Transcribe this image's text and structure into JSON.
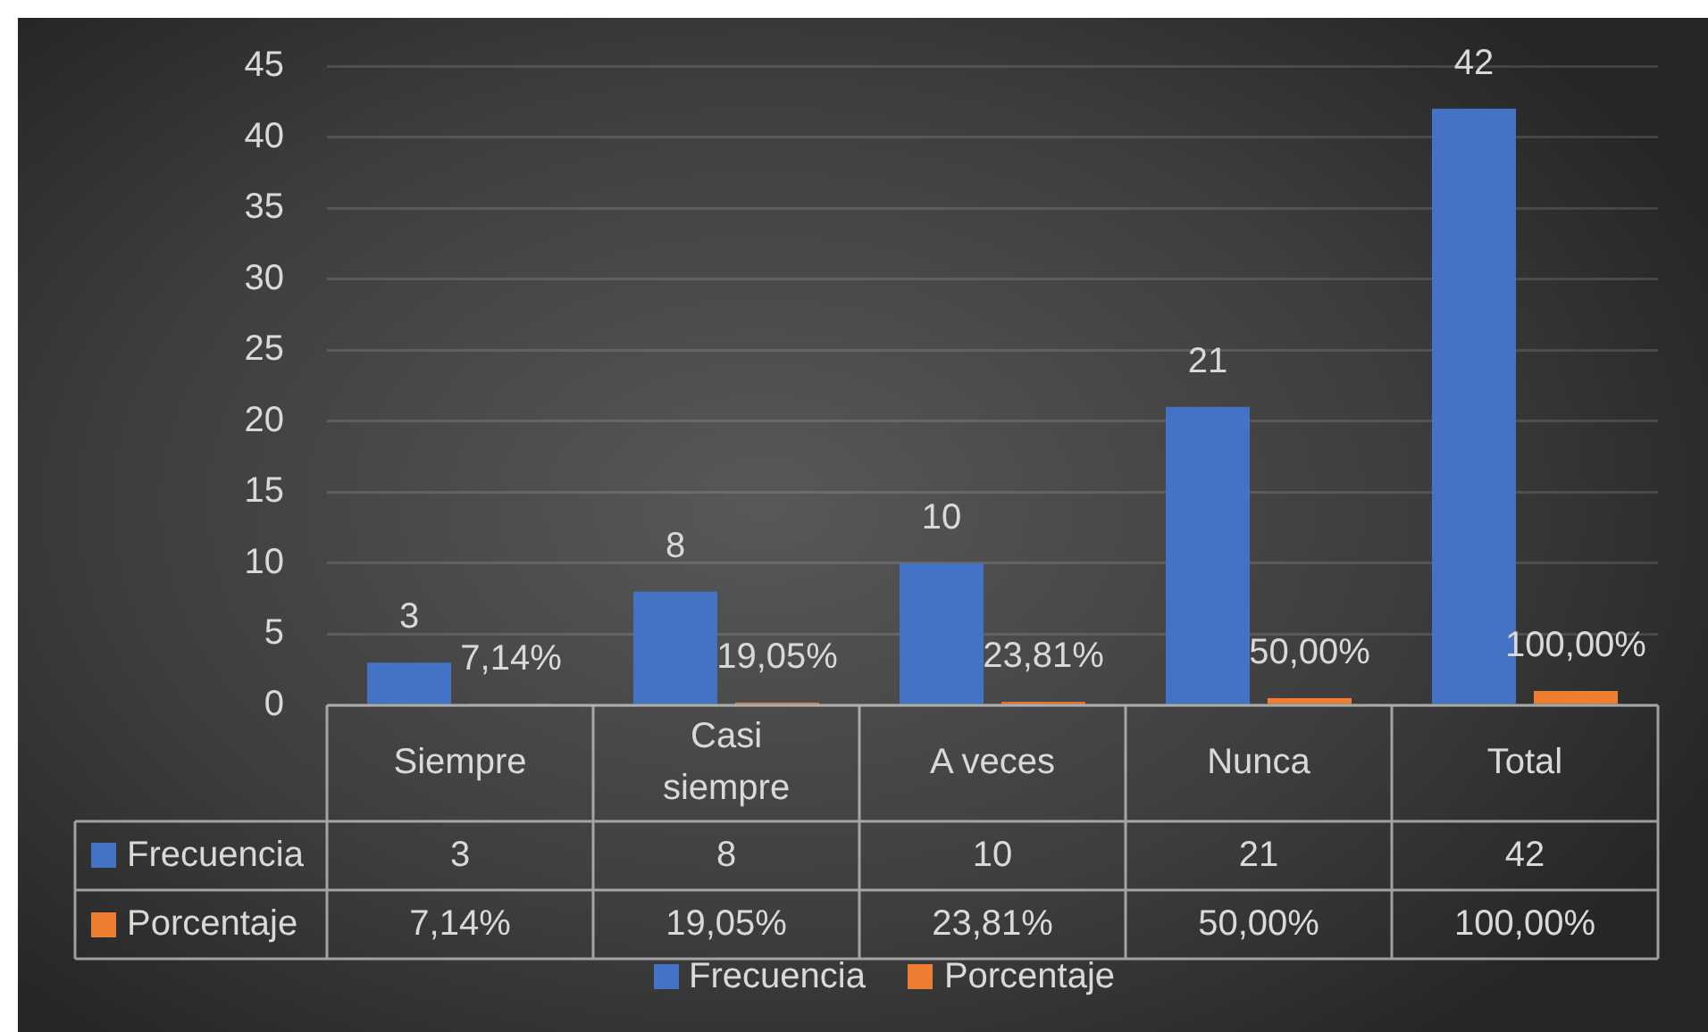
{
  "chart_data": {
    "type": "bar",
    "categories": [
      "Siempre",
      "Casi siempre",
      "A veces",
      "Nunca",
      "Total"
    ],
    "series": [
      {
        "name": "Frecuencia",
        "color": "#4472c4",
        "values": [
          3,
          8,
          10,
          21,
          42
        ],
        "value_labels": [
          "3",
          "8",
          "10",
          "21",
          "42"
        ]
      },
      {
        "name": "Porcentaje",
        "color": "#ed7d31",
        "values": [
          0.0714,
          0.1905,
          0.2381,
          0.5,
          1
        ],
        "value_labels": [
          "7,14%",
          "19,05%",
          "23,81%",
          "50,00%",
          "100,00%"
        ]
      }
    ],
    "ylim": [
      0,
      45
    ],
    "yticks": [
      0,
      5,
      10,
      15,
      20,
      25,
      30,
      35,
      40,
      45
    ],
    "grid": "y",
    "legend": "bottom"
  }
}
